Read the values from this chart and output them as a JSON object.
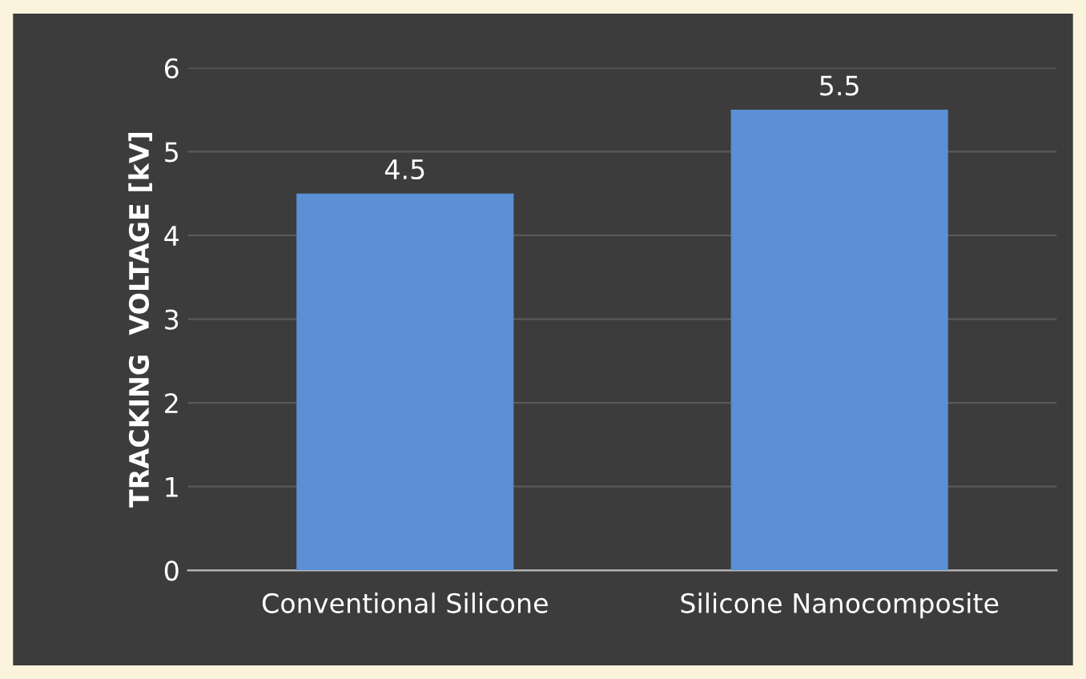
{
  "chart_data": {
    "type": "bar",
    "ylabel": "TRACKING  VOLTAGE [kV]",
    "categories": [
      "Conventional Silicone",
      "Silicone Nanocomposite"
    ],
    "values": [
      4.5,
      5.5
    ],
    "color": "#5b8fd6",
    "ylim": [
      0,
      6
    ],
    "yticks": [
      0,
      1,
      2,
      3,
      4,
      5,
      6
    ],
    "grid": "y",
    "data_labels": true
  }
}
